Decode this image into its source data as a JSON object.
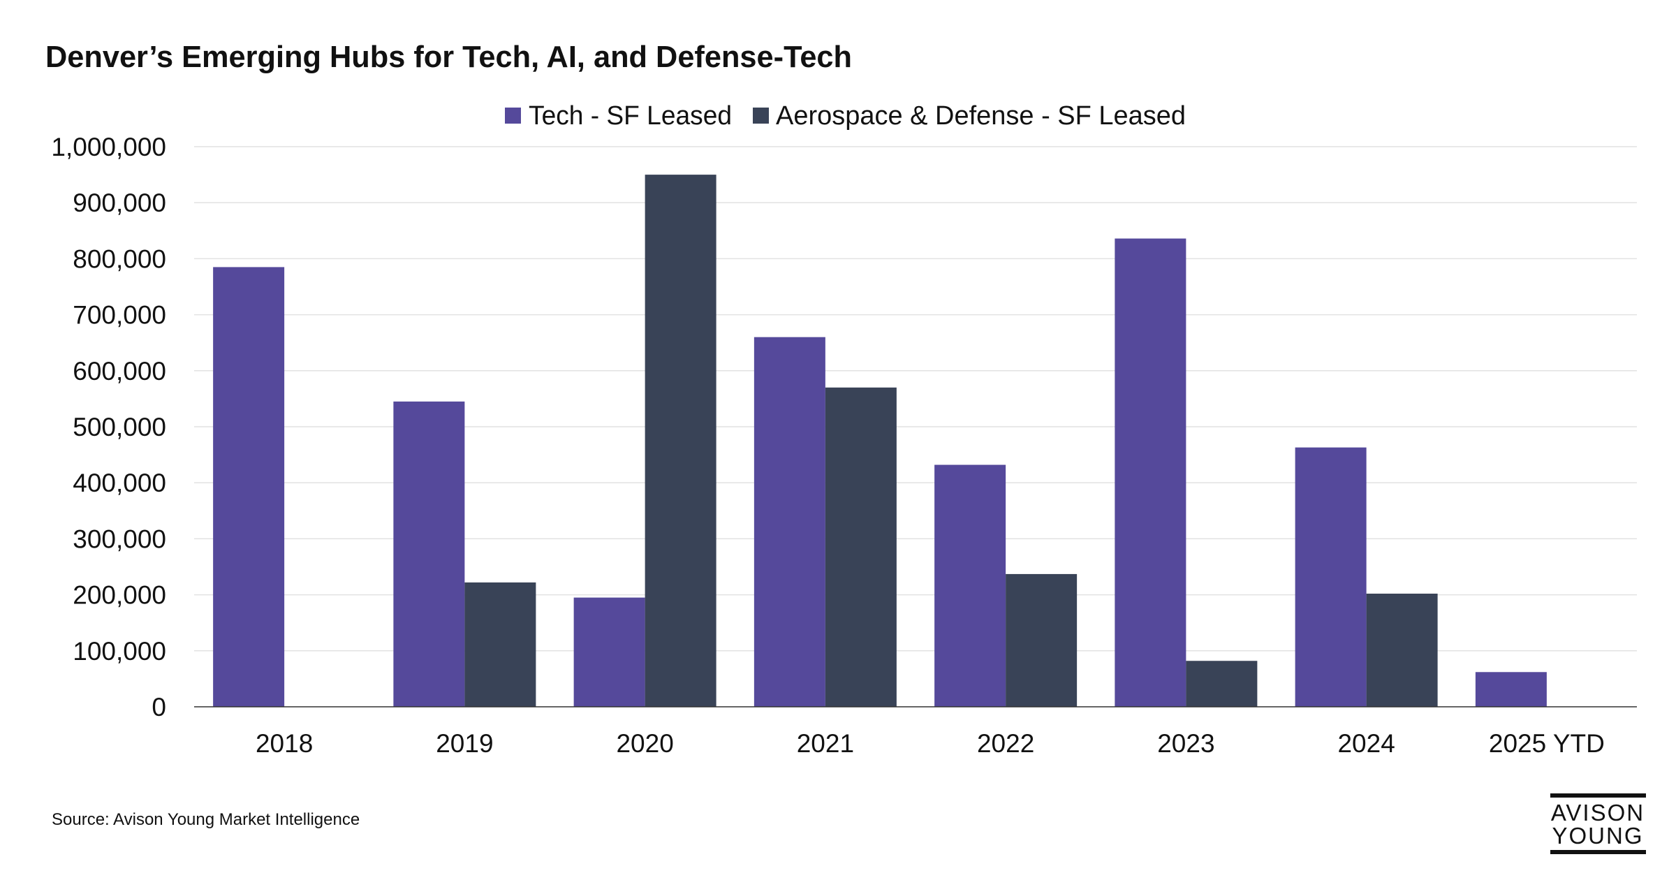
{
  "chart_data": {
    "type": "bar",
    "title": "Denver’s Emerging Hubs for Tech, AI, and Defense-Tech",
    "xlabel": "",
    "ylabel": "",
    "categories": [
      "2018",
      "2019",
      "2020",
      "2021",
      "2022",
      "2023",
      "2024",
      "2025 YTD"
    ],
    "series": [
      {
        "name": "Tech - SF Leased",
        "color": "#55499b",
        "values": [
          785000,
          545000,
          195000,
          660000,
          432000,
          836000,
          463000,
          62000
        ]
      },
      {
        "name": "Aerospace & Defense - SF Leased",
        "color": "#394357",
        "values": [
          0,
          222000,
          950000,
          570000,
          237000,
          82000,
          202000,
          0
        ]
      }
    ],
    "ylim": [
      0,
      1000000
    ],
    "yticks": [
      "0",
      "100,000",
      "200,000",
      "300,000",
      "400,000",
      "500,000",
      "600,000",
      "700,000",
      "800,000",
      "900,000",
      "1,000,000"
    ],
    "grid": true,
    "legend_position": "top-center"
  },
  "footer": {
    "source": "Source: Avison Young Market Intelligence",
    "logo_line1": "AVISON",
    "logo_line2": "YOUNG"
  }
}
